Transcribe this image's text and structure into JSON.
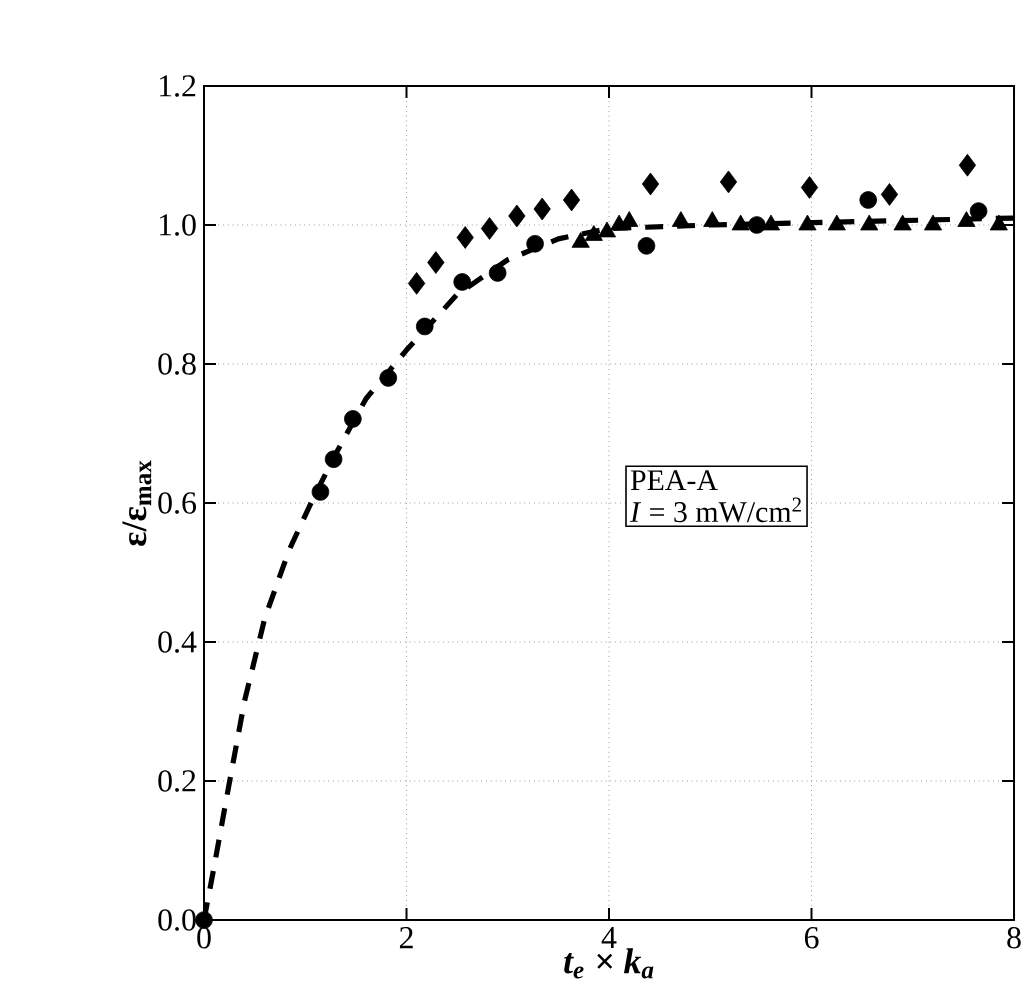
{
  "chart_data": {
    "type": "scatter",
    "xlabel": "t$_{e}$ × k$_{a}$",
    "ylabel": "ε/ε$_{max}$",
    "xlim": [
      0,
      8
    ],
    "ylim": [
      0,
      1.2
    ],
    "xticks": [
      0,
      2,
      4,
      6,
      8
    ],
    "yticks": [
      {
        "value": 0,
        "label": "0.0"
      },
      {
        "value": 0.2,
        "label": "0.2"
      },
      {
        "value": 0.4,
        "label": "0.4"
      },
      {
        "value": 0.6,
        "label": "0.6"
      },
      {
        "value": 0.8,
        "label": "0.8"
      },
      {
        "value": 1.0,
        "label": "1.0"
      },
      {
        "value": 1.2,
        "label": "1.2"
      }
    ],
    "grid": true,
    "annotations": [
      "PEA-A",
      "*I* = 3 mW/cm$^{2}$"
    ],
    "series": [
      {
        "type": "line",
        "line_style": "dashed",
        "marker": "none",
        "color": "#000000",
        "x": [
          0,
          0.09,
          0.25,
          0.4,
          0.6,
          0.84,
          1.06,
          1.28,
          1.6,
          2.0,
          2.5,
          3.0,
          3.5,
          4.0,
          5.0,
          8.0
        ],
        "values": [
          0,
          0.069,
          0.197,
          0.315,
          0.434,
          0.532,
          0.601,
          0.665,
          0.75,
          0.82,
          0.9,
          0.95,
          0.98,
          0.995,
          1.0,
          1.01
        ]
      },
      {
        "marker": "circle",
        "color": "#000000",
        "x": [
          0,
          1.15,
          1.28,
          1.47,
          1.82,
          2.18,
          2.55,
          2.9,
          3.27,
          4.37,
          5.46,
          6.56,
          7.65
        ],
        "values": [
          0,
          0.616,
          0.663,
          0.721,
          0.78,
          0.854,
          0.918,
          0.931,
          0.973,
          0.97,
          1.0,
          1.036,
          1.02
        ]
      },
      {
        "marker": "diamond",
        "color": "#000000",
        "x": [
          2.1,
          2.29,
          2.58,
          2.82,
          3.09,
          3.34,
          3.63,
          4.41,
          5.18,
          5.98,
          6.77,
          7.54
        ],
        "values": [
          0.916,
          0.946,
          0.982,
          0.995,
          1.013,
          1.023,
          1.036,
          1.059,
          1.062,
          1.054,
          1.044,
          1.086
        ]
      },
      {
        "marker": "triangle",
        "color": "#000000",
        "x": [
          3.72,
          3.85,
          3.98,
          4.1,
          4.2,
          4.71,
          5.02,
          5.3,
          5.6,
          5.96,
          6.25,
          6.57,
          6.9,
          7.2,
          7.53,
          7.85
        ],
        "values": [
          0.975,
          0.985,
          0.99,
          1.0,
          1.005,
          1.005,
          1.005,
          1.0,
          1.0,
          1.0,
          1.0,
          1.0,
          1.0,
          1.0,
          1.005,
          1.0
        ]
      }
    ]
  }
}
